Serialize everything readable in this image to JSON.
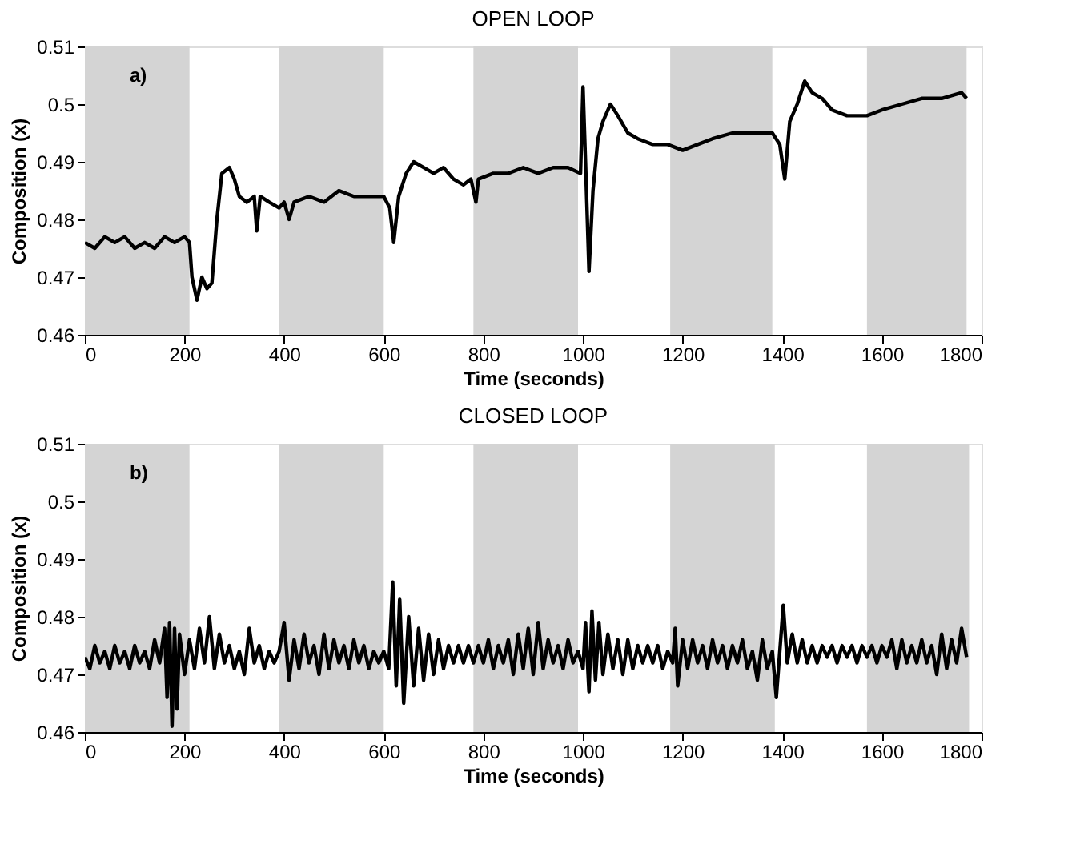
{
  "chart_data": [
    {
      "type": "line",
      "title": "OPEN LOOP",
      "xlabel": "Time (seconds)",
      "ylabel": "Composition (x)",
      "xlim": [
        0,
        1800
      ],
      "ylim": [
        0.46,
        0.51
      ],
      "xticks": [
        0,
        200,
        400,
        600,
        800,
        1000,
        1200,
        1400,
        1600,
        1800
      ],
      "yticks": [
        0.46,
        0.47,
        0.48,
        0.49,
        0.5,
        0.51
      ],
      "grid": false,
      "annotations": [
        "a)"
      ],
      "bands": [
        {
          "axis": "x",
          "from": 0,
          "to": 210,
          "color": "#d4d4d4"
        },
        {
          "axis": "x",
          "from": 390,
          "to": 600,
          "color": "#d4d4d4"
        },
        {
          "axis": "x",
          "from": 780,
          "to": 990,
          "color": "#d4d4d4"
        },
        {
          "axis": "x",
          "from": 1175,
          "to": 1380,
          "color": "#d4d4d4"
        },
        {
          "axis": "x",
          "from": 1570,
          "to": 1770,
          "color": "#d4d4d4"
        }
      ],
      "series": [
        {
          "color": "#000000",
          "x": [
            0,
            20,
            40,
            60,
            80,
            100,
            120,
            140,
            160,
            180,
            200,
            210,
            215,
            225,
            235,
            245,
            255,
            265,
            275,
            290,
            300,
            310,
            325,
            340,
            345,
            352,
            370,
            390,
            400,
            410,
            420,
            450,
            480,
            510,
            540,
            570,
            600,
            612,
            620,
            630,
            645,
            660,
            680,
            700,
            720,
            740,
            760,
            775,
            785,
            790,
            820,
            850,
            880,
            910,
            940,
            970,
            995,
            1000,
            1005,
            1012,
            1020,
            1030,
            1040,
            1055,
            1070,
            1090,
            1110,
            1140,
            1170,
            1200,
            1230,
            1260,
            1300,
            1340,
            1380,
            1395,
            1405,
            1415,
            1430,
            1445,
            1460,
            1480,
            1500,
            1530,
            1570,
            1600,
            1640,
            1680,
            1720,
            1760,
            1770
          ],
          "values": [
            0.476,
            0.475,
            0.477,
            0.476,
            0.477,
            0.475,
            0.476,
            0.475,
            0.477,
            0.476,
            0.477,
            0.476,
            0.47,
            0.466,
            0.47,
            0.468,
            0.469,
            0.48,
            0.488,
            0.489,
            0.487,
            0.484,
            0.483,
            0.484,
            0.478,
            0.484,
            0.483,
            0.482,
            0.483,
            0.48,
            0.483,
            0.484,
            0.483,
            0.485,
            0.484,
            0.484,
            0.484,
            0.482,
            0.476,
            0.484,
            0.488,
            0.49,
            0.489,
            0.488,
            0.489,
            0.487,
            0.486,
            0.487,
            0.483,
            0.487,
            0.488,
            0.488,
            0.489,
            0.488,
            0.489,
            0.489,
            0.488,
            0.503,
            0.49,
            0.471,
            0.485,
            0.494,
            0.497,
            0.5,
            0.498,
            0.495,
            0.494,
            0.493,
            0.493,
            0.492,
            0.493,
            0.494,
            0.495,
            0.495,
            0.495,
            0.493,
            0.487,
            0.497,
            0.5,
            0.504,
            0.502,
            0.501,
            0.499,
            0.498,
            0.498,
            0.499,
            0.5,
            0.501,
            0.501,
            0.502,
            0.501
          ]
        }
      ]
    },
    {
      "type": "line",
      "title": "CLOSED LOOP",
      "xlabel": "Time (seconds)",
      "ylabel": "Composition (x)",
      "xlim": [
        0,
        1800
      ],
      "ylim": [
        0.46,
        0.51
      ],
      "xticks": [
        0,
        200,
        400,
        600,
        800,
        1000,
        1200,
        1400,
        1600,
        1800
      ],
      "yticks": [
        0.46,
        0.47,
        0.48,
        0.49,
        0.5,
        0.51
      ],
      "grid": false,
      "annotations": [
        "b)"
      ],
      "bands": [
        {
          "axis": "x",
          "from": 0,
          "to": 210,
          "color": "#d4d4d4"
        },
        {
          "axis": "x",
          "from": 390,
          "to": 600,
          "color": "#d4d4d4"
        },
        {
          "axis": "x",
          "from": 780,
          "to": 990,
          "color": "#d4d4d4"
        },
        {
          "axis": "x",
          "from": 1175,
          "to": 1385,
          "color": "#d4d4d4"
        },
        {
          "axis": "x",
          "from": 1570,
          "to": 1775,
          "color": "#d4d4d4"
        }
      ],
      "series": [
        {
          "color": "#000000",
          "x": [
            0,
            10,
            20,
            30,
            40,
            50,
            60,
            70,
            80,
            90,
            100,
            110,
            120,
            130,
            140,
            150,
            160,
            165,
            170,
            175,
            180,
            185,
            190,
            200,
            210,
            220,
            230,
            240,
            250,
            260,
            270,
            280,
            290,
            300,
            310,
            320,
            330,
            340,
            350,
            360,
            370,
            380,
            390,
            400,
            410,
            420,
            430,
            440,
            450,
            460,
            470,
            480,
            490,
            500,
            510,
            520,
            530,
            540,
            550,
            560,
            570,
            580,
            590,
            600,
            610,
            618,
            625,
            632,
            640,
            650,
            660,
            670,
            680,
            690,
            700,
            710,
            720,
            730,
            740,
            750,
            760,
            770,
            780,
            790,
            800,
            810,
            820,
            830,
            840,
            850,
            860,
            870,
            880,
            890,
            900,
            910,
            920,
            930,
            940,
            950,
            960,
            970,
            980,
            990,
            1000,
            1005,
            1012,
            1018,
            1025,
            1032,
            1040,
            1050,
            1060,
            1070,
            1080,
            1090,
            1100,
            1110,
            1120,
            1130,
            1140,
            1150,
            1160,
            1170,
            1180,
            1185,
            1190,
            1200,
            1210,
            1220,
            1230,
            1240,
            1250,
            1260,
            1270,
            1280,
            1290,
            1300,
            1310,
            1320,
            1330,
            1340,
            1350,
            1360,
            1370,
            1380,
            1388,
            1395,
            1402,
            1410,
            1420,
            1430,
            1440,
            1450,
            1460,
            1470,
            1480,
            1490,
            1500,
            1510,
            1520,
            1530,
            1540,
            1550,
            1560,
            1570,
            1580,
            1590,
            1600,
            1610,
            1620,
            1630,
            1640,
            1650,
            1660,
            1670,
            1680,
            1690,
            1700,
            1710,
            1720,
            1730,
            1740,
            1750,
            1760,
            1770
          ],
          "values": [
            0.473,
            0.471,
            0.475,
            0.472,
            0.474,
            0.471,
            0.475,
            0.472,
            0.474,
            0.471,
            0.475,
            0.472,
            0.474,
            0.471,
            0.476,
            0.472,
            0.478,
            0.466,
            0.479,
            0.461,
            0.478,
            0.464,
            0.477,
            0.47,
            0.476,
            0.471,
            0.478,
            0.472,
            0.48,
            0.471,
            0.477,
            0.472,
            0.475,
            0.471,
            0.474,
            0.47,
            0.478,
            0.472,
            0.475,
            0.471,
            0.474,
            0.472,
            0.474,
            0.479,
            0.469,
            0.476,
            0.471,
            0.477,
            0.472,
            0.475,
            0.47,
            0.477,
            0.471,
            0.476,
            0.472,
            0.475,
            0.471,
            0.476,
            0.472,
            0.475,
            0.471,
            0.474,
            0.472,
            0.474,
            0.471,
            0.486,
            0.468,
            0.483,
            0.465,
            0.48,
            0.468,
            0.478,
            0.469,
            0.477,
            0.47,
            0.476,
            0.471,
            0.475,
            0.472,
            0.475,
            0.472,
            0.475,
            0.472,
            0.475,
            0.472,
            0.476,
            0.471,
            0.475,
            0.472,
            0.476,
            0.47,
            0.477,
            0.471,
            0.478,
            0.47,
            0.479,
            0.471,
            0.476,
            0.472,
            0.475,
            0.471,
            0.476,
            0.472,
            0.474,
            0.471,
            0.479,
            0.467,
            0.481,
            0.469,
            0.479,
            0.47,
            0.477,
            0.471,
            0.476,
            0.47,
            0.476,
            0.471,
            0.475,
            0.472,
            0.475,
            0.472,
            0.475,
            0.471,
            0.474,
            0.472,
            0.478,
            0.468,
            0.476,
            0.471,
            0.476,
            0.472,
            0.475,
            0.471,
            0.476,
            0.472,
            0.475,
            0.471,
            0.475,
            0.472,
            0.476,
            0.471,
            0.474,
            0.469,
            0.476,
            0.471,
            0.474,
            0.466,
            0.474,
            0.482,
            0.472,
            0.477,
            0.472,
            0.476,
            0.472,
            0.475,
            0.472,
            0.475,
            0.473,
            0.475,
            0.472,
            0.475,
            0.473,
            0.475,
            0.472,
            0.475,
            0.473,
            0.475,
            0.472,
            0.475,
            0.473,
            0.476,
            0.471,
            0.476,
            0.472,
            0.475,
            0.472,
            0.476,
            0.472,
            0.475,
            0.47,
            0.477,
            0.471,
            0.476,
            0.472,
            0.478,
            0.473
          ]
        }
      ]
    }
  ]
}
